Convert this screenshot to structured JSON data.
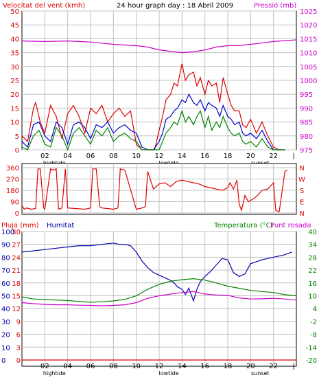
{
  "header": {
    "wind_label": "Velocitat del vent (kmh)",
    "title": "24 hour graph day : 18 Abril 2009",
    "pressure_label": "Pressió (mb)"
  },
  "colors": {
    "wind_max": "#e00000",
    "wind_avg": "#0000cc",
    "wind_min": "#008000",
    "pressure": "#cc00cc",
    "direction": "#e00000",
    "humidity": "#0000aa",
    "temperature": "#008000",
    "dewpoint": "#cc00cc",
    "rain": "#e00000",
    "grid": "#c0c0c0",
    "frame": "#000000"
  },
  "x_axis": {
    "ticks": [
      "02",
      "04",
      "06",
      "08",
      "10",
      "12",
      "14",
      "16",
      "18",
      "20",
      "22"
    ],
    "end_mark": "|",
    "markers": [
      {
        "label": "hightide",
        "at": "02"
      },
      {
        "label": "lowtide",
        "at": "12"
      },
      {
        "label": "sunset",
        "at": "20"
      }
    ]
  },
  "direction_axis": {
    "degree_ticks": [
      "360",
      "270",
      "180",
      "90",
      "0"
    ],
    "compass": [
      "N",
      "W",
      "S",
      "E",
      "N"
    ]
  },
  "bottom_header": {
    "rain_label": "Pluja (mm)",
    "humidity_label": "Humitat",
    "temperature_label": "Temperatura (°C)",
    "dewpoint_label": "Punt rosada"
  },
  "chart_data": [
    {
      "type": "line",
      "title": "24 hour graph day : 18 Abril 2009",
      "xlabel": "",
      "ylabel": "Velocitat del vent (kmh)",
      "ylim": [
        0,
        50
      ],
      "yticks": [
        0,
        5,
        10,
        15,
        20,
        25,
        30,
        35,
        40,
        45,
        50
      ],
      "y2label": "Pressió (mb)",
      "y2lim": [
        975,
        1025
      ],
      "y2ticks": [
        975,
        980,
        985,
        990,
        995,
        1000,
        1005,
        1010,
        1015,
        1020,
        1025
      ],
      "xlim": [
        0,
        24
      ],
      "grid": true,
      "series": [
        {
          "color_key": "pressure",
          "axis": "right",
          "x": [
            0,
            2,
            4,
            6,
            8,
            10,
            11,
            12,
            13,
            14,
            15,
            16,
            17,
            18,
            19,
            20,
            22,
            24
          ],
          "values": [
            1014.2,
            1014.0,
            1014.2,
            1013.8,
            1013.0,
            1012.5,
            1012.0,
            1011.0,
            1010.5,
            1010.0,
            1010.3,
            1011.0,
            1012.0,
            1012.5,
            1012.6,
            1013.0,
            1014.0,
            1014.6
          ]
        },
        {
          "color_key": "wind_max",
          "axis": "left",
          "x": [
            0,
            0.5,
            1,
            1.2,
            1.6,
            2,
            2.5,
            3,
            3.5,
            4,
            4.5,
            5,
            5.5,
            6,
            6.5,
            7,
            7.5,
            8,
            8.5,
            9,
            9.5,
            10,
            10.5,
            11,
            11.3,
            11.6,
            12,
            12.3,
            12.6,
            13,
            13.3,
            13.6,
            14,
            14.3,
            14.6,
            15,
            15.3,
            15.6,
            16,
            16.3,
            16.6,
            17,
            17.3,
            17.6,
            18,
            18.3,
            18.6,
            19,
            19.3,
            19.6,
            20,
            20.5,
            21,
            21.5,
            22,
            22.5,
            23
          ],
          "values": [
            5,
            3,
            15,
            17,
            10,
            6,
            16,
            12,
            4,
            13,
            16,
            12,
            6,
            15,
            13,
            16,
            10,
            13,
            15,
            12,
            14,
            2,
            0,
            0,
            0,
            0,
            7,
            12,
            18,
            20,
            24,
            23,
            31,
            25,
            27,
            28,
            23,
            26,
            20,
            25,
            23,
            24,
            17,
            26,
            20,
            16,
            14,
            14,
            9,
            8,
            11,
            6,
            10,
            5,
            1,
            0,
            0
          ]
        },
        {
          "color_key": "wind_avg",
          "axis": "left",
          "x": [
            0,
            0.5,
            1,
            1.5,
            2,
            2.5,
            3,
            3.5,
            4,
            4.5,
            5,
            5.5,
            6,
            6.5,
            7,
            7.5,
            8,
            8.5,
            9,
            9.5,
            10,
            10.5,
            11,
            11.5,
            12,
            12.3,
            12.6,
            13,
            13.3,
            13.6,
            14,
            14.3,
            14.6,
            15,
            15.3,
            15.6,
            16,
            16.3,
            16.6,
            17,
            17.3,
            17.6,
            18,
            18.3,
            18.6,
            19,
            19.3,
            19.6,
            20,
            20.5,
            21,
            21.5,
            22,
            22.5,
            23
          ],
          "values": [
            3,
            1,
            9,
            10,
            5,
            3,
            10,
            8,
            2,
            9,
            10,
            8,
            4,
            9,
            8,
            10,
            6,
            8,
            9,
            7,
            6,
            1,
            0,
            0,
            3,
            6,
            11,
            12,
            14,
            15,
            18,
            17,
            20,
            17,
            16,
            18,
            14,
            17,
            16,
            15,
            12,
            16,
            12,
            11,
            9,
            10,
            6,
            5,
            6,
            4,
            7,
            3,
            0,
            0,
            0
          ]
        },
        {
          "color_key": "wind_min",
          "axis": "left",
          "x": [
            0,
            0.5,
            1,
            1.5,
            2,
            2.5,
            3,
            3.5,
            4,
            4.5,
            5,
            5.5,
            6,
            6.5,
            7,
            7.5,
            8,
            8.5,
            9,
            9.5,
            10,
            10.5,
            11,
            11.5,
            12,
            12.3,
            12.6,
            13,
            13.3,
            13.6,
            14,
            14.3,
            14.6,
            15,
            15.3,
            15.6,
            16,
            16.3,
            16.6,
            17,
            17.3,
            17.6,
            18,
            18.3,
            18.6,
            19,
            19.3,
            19.6,
            20,
            20.5,
            21,
            21.5,
            22,
            22.5,
            23
          ],
          "values": [
            1,
            0,
            5,
            7,
            2,
            1,
            8,
            5,
            0,
            6,
            8,
            5,
            2,
            7,
            5,
            8,
            3,
            5,
            6,
            4,
            3,
            0,
            0,
            0,
            0,
            3,
            6,
            8,
            10,
            9,
            14,
            10,
            12,
            9,
            12,
            14,
            8,
            12,
            7,
            10,
            8,
            12,
            8,
            6,
            5,
            6,
            3,
            2,
            3,
            1,
            4,
            1,
            0,
            0,
            0
          ]
        }
      ]
    },
    {
      "type": "line",
      "title": "",
      "ylabel": "",
      "ylim": [
        0,
        360
      ],
      "yticks": [
        0,
        90,
        180,
        270,
        360
      ],
      "xlim": [
        0,
        24
      ],
      "grid": true,
      "series": [
        {
          "color_key": "direction",
          "x": [
            0,
            0.2,
            0.4,
            0.8,
            1.2,
            1.4,
            1.6,
            1.9,
            2.0,
            2.5,
            2.8,
            3.0,
            3.2,
            3.5,
            3.8,
            4.0,
            5.5,
            6.0,
            6.2,
            6.5,
            6.8,
            7.0,
            8.0,
            8.4,
            8.6,
            9.0,
            10.0,
            10.5,
            10.8,
            11.0,
            11.5,
            12.0,
            12.5,
            13.0,
            13.5,
            14.0,
            14.5,
            15.0,
            15.5,
            16.0,
            16.5,
            17.0,
            17.5,
            18.0,
            18.2,
            18.5,
            18.8,
            19.0,
            19.2,
            19.5,
            19.8,
            20.0,
            20.5,
            21.0,
            21.5,
            22.0,
            22.2,
            22.5,
            23.0,
            23.2
          ],
          "values": [
            60,
            30,
            40,
            30,
            35,
            350,
            350,
            40,
            30,
            350,
            340,
            350,
            30,
            40,
            350,
            40,
            30,
            40,
            350,
            350,
            50,
            40,
            30,
            40,
            350,
            340,
            30,
            40,
            50,
            330,
            190,
            230,
            240,
            210,
            250,
            260,
            250,
            240,
            230,
            210,
            200,
            190,
            180,
            200,
            240,
            190,
            260,
            70,
            20,
            140,
            90,
            100,
            130,
            180,
            190,
            240,
            20,
            10,
            330,
            340
          ]
        }
      ]
    },
    {
      "type": "line",
      "title": "",
      "xlim": [
        0,
        24
      ],
      "grid": true,
      "axes": {
        "rain": {
          "label": "Pluja (mm)",
          "lim": [
            0,
            30
          ],
          "ticks": [
            0,
            3,
            6,
            9,
            12,
            15,
            18,
            21,
            24,
            27,
            30
          ]
        },
        "humidity": {
          "label": "Humitat",
          "lim": [
            0,
            100
          ],
          "ticks": [
            0,
            10,
            20,
            30,
            40,
            50,
            60,
            70,
            80,
            90,
            100
          ]
        },
        "temperature": {
          "label": "Temperatura (°C)",
          "lim": [
            -20,
            40
          ],
          "ticks": [
            -20,
            -14,
            -8,
            -2,
            4,
            10,
            16,
            22,
            28,
            34,
            40
          ]
        }
      },
      "series": [
        {
          "color_key": "humidity",
          "axis": "humidity",
          "x": [
            0,
            1,
            2,
            3,
            4,
            5,
            6,
            7,
            8,
            8.5,
            9,
            9.5,
            10,
            10.5,
            11,
            11.5,
            12,
            12.5,
            13,
            13.3,
            13.6,
            14,
            14.3,
            14.6,
            15,
            15.3,
            15.6,
            16,
            16.5,
            17,
            17.5,
            18,
            18.5,
            19,
            19.5,
            20,
            21,
            22,
            23,
            23.6
          ],
          "values": [
            84,
            85,
            86,
            87,
            88,
            89,
            89,
            90,
            91,
            90,
            90,
            89,
            84,
            77,
            72,
            68,
            66,
            64,
            62,
            60,
            57,
            55,
            51,
            56,
            46,
            55,
            61,
            65,
            69,
            74,
            79,
            78,
            68,
            65,
            67,
            75,
            78,
            80,
            82,
            84
          ]
        },
        {
          "color_key": "temperature",
          "axis": "temperature",
          "x": [
            0,
            1,
            2,
            3,
            4,
            5,
            6,
            7,
            8,
            9,
            10,
            11,
            12,
            13,
            14,
            15,
            16,
            17,
            18,
            19,
            20,
            21,
            22,
            23,
            24
          ],
          "values": [
            9.5,
            8.5,
            8.2,
            8.0,
            7.8,
            7.3,
            7.0,
            7.2,
            7.6,
            8.3,
            10.0,
            13.0,
            15.3,
            16.8,
            17.5,
            18.0,
            17.3,
            16.0,
            14.5,
            13.5,
            12.5,
            12.0,
            11.5,
            10.5,
            10.0
          ]
        },
        {
          "color_key": "dewpoint",
          "axis": "temperature",
          "x": [
            0,
            1,
            2,
            3,
            4,
            5,
            6,
            7,
            8,
            9,
            10,
            11,
            12,
            13,
            14,
            15,
            16,
            17,
            18,
            19,
            20,
            21,
            22,
            23,
            24
          ],
          "values": [
            6.8,
            6.3,
            6.0,
            5.8,
            5.8,
            5.6,
            5.5,
            5.3,
            5.5,
            5.8,
            6.8,
            8.8,
            10.0,
            10.8,
            11.5,
            12.0,
            10.8,
            10.4,
            10.2,
            9.0,
            8.5,
            8.6,
            8.8,
            8.5,
            8.0
          ]
        },
        {
          "color_key": "rain",
          "axis": "rain",
          "x": [
            0,
            24
          ],
          "values": [
            0,
            0
          ]
        }
      ]
    }
  ]
}
